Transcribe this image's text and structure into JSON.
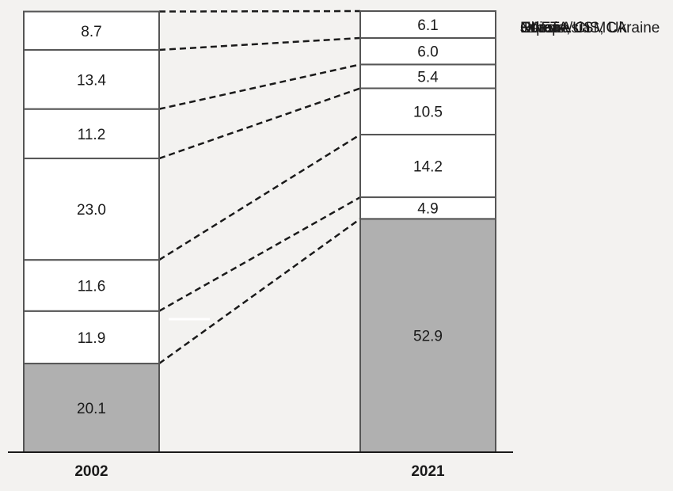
{
  "chart_data": {
    "type": "bar",
    "stacked": true,
    "categories": [
      "2002",
      "2021"
    ],
    "series": [
      {
        "name": "China",
        "values": [
          20.1,
          52.9
        ],
        "color": "#b0b0b0"
      },
      {
        "name": "Japan",
        "values": [
          11.9,
          4.9
        ],
        "color": "#ffffff"
      },
      {
        "name": "Other Asia",
        "values": [
          11.6,
          14.2
        ],
        "color": "#ffffff"
      },
      {
        "name": "Europe",
        "values": [
          23.0,
          10.5
        ],
        "color": "#ffffff"
      },
      {
        "name": "Russia, CIS, Ukraine",
        "values": [
          11.2,
          5.4
        ],
        "color": "#ffffff"
      },
      {
        "name": "NAFTA/USMCA",
        "values": [
          13.4,
          6.0
        ],
        "color": "#ffffff"
      },
      {
        "name": "Other",
        "values": [
          8.7,
          6.1
        ],
        "color": "#ffffff"
      }
    ],
    "value_labels": [
      [
        "20.1",
        "52.9"
      ],
      [
        "11.9",
        "4.9"
      ],
      [
        "11.6",
        "14.2"
      ],
      [
        "23.0",
        "10.5"
      ],
      [
        "11.2",
        "5.4"
      ],
      [
        "13.4",
        "6.0"
      ],
      [
        "8.7",
        "6.1"
      ]
    ],
    "legend_position": "right",
    "connectors": "dashed",
    "title": "",
    "xlabel": "",
    "ylabel": ""
  }
}
